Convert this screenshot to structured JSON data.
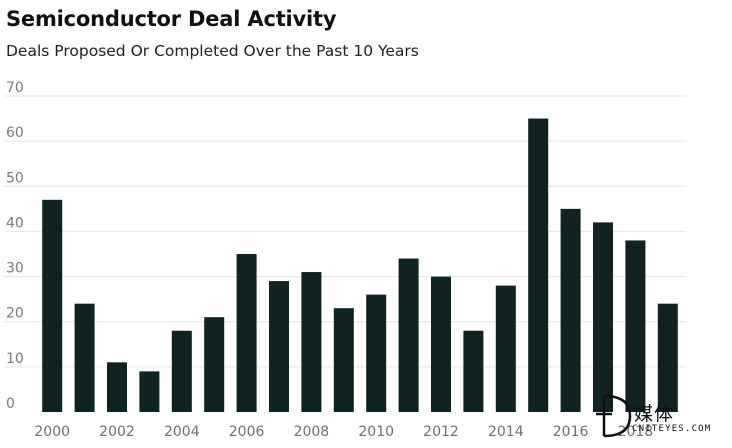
{
  "header": {
    "title": "Semiconductor Deal Activity",
    "subtitle": "Deals Proposed Or Completed Over the Past 10 Years"
  },
  "watermark": {
    "cn_text": "媒体",
    "en_text": "CNITEYES.COM"
  },
  "chart_data": {
    "type": "bar",
    "title": "Semiconductor Deal Activity",
    "subtitle": "Deals Proposed Or Completed Over the Past 10 Years",
    "categories": [
      "2000",
      "2001",
      "2002",
      "2003",
      "2004",
      "2005",
      "2006",
      "2007",
      "2008",
      "2009",
      "2010",
      "2011",
      "2012",
      "2013",
      "2014",
      "2015",
      "2016",
      "2017",
      "2018",
      "2019"
    ],
    "x_tick_labels": [
      "2000",
      "2002",
      "2004",
      "2006",
      "2008",
      "2010",
      "2012",
      "2014",
      "2016",
      "2018"
    ],
    "values": [
      47,
      24,
      11,
      9,
      18,
      21,
      35,
      29,
      31,
      23,
      26,
      34,
      30,
      18,
      28,
      65,
      45,
      42,
      38,
      24
    ],
    "ylim": [
      0,
      70
    ],
    "y_ticks": [
      0,
      10,
      20,
      30,
      40,
      50,
      60,
      70
    ],
    "grid": true,
    "xlabel": "",
    "ylabel": "",
    "bar_color": "#0f2322",
    "grid_color": "#e6e6e6"
  }
}
